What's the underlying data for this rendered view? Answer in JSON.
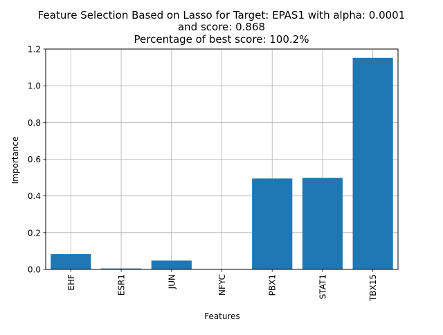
{
  "chart_data": {
    "type": "bar",
    "title_lines": [
      "Feature Selection Based on Lasso for Target: EPAS1 with alpha: 0.0001",
      "and score: 0.868",
      "Percentage of best score: 100.2%"
    ],
    "xlabel": "Features",
    "ylabel": "Importance",
    "categories": [
      "EHF",
      "ESR1",
      "JUN",
      "NFYC",
      "PBX1",
      "STAT1",
      "TBX15"
    ],
    "values": [
      0.083,
      0.005,
      0.048,
      0.0,
      0.495,
      0.498,
      1.152
    ],
    "ylim": [
      0,
      1.2
    ],
    "yticks": [
      "0.0",
      "0.2",
      "0.4",
      "0.6",
      "0.8",
      "1.0",
      "1.2"
    ],
    "grid": true,
    "bar_color": "#1f77b4"
  }
}
